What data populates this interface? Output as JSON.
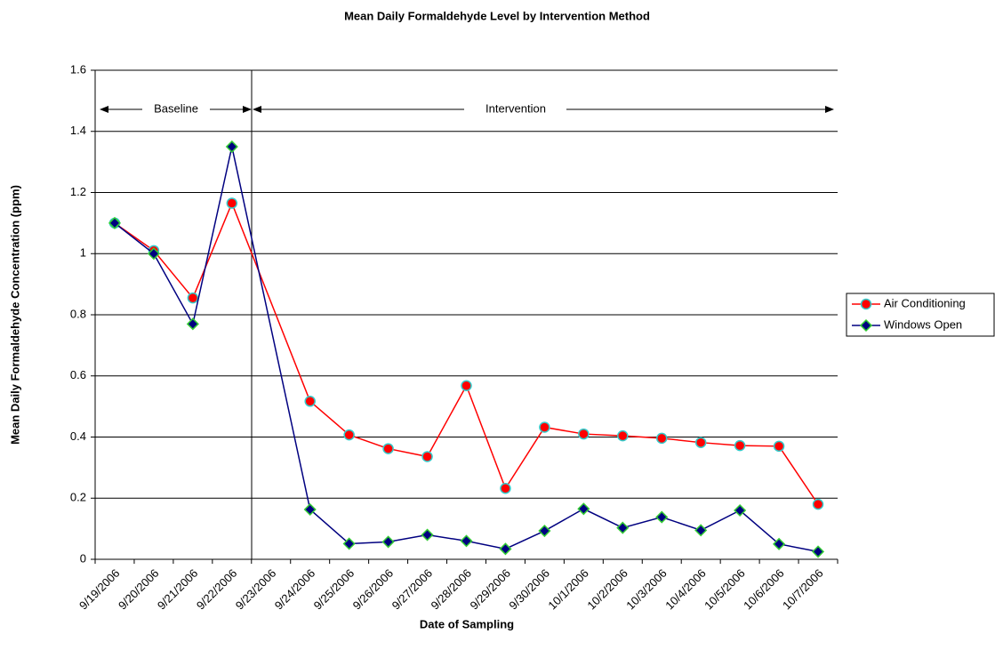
{
  "chart_data": {
    "type": "line",
    "title": "Mean Daily Formaldehyde Level by Intervention Method",
    "x_label": "Date of Sampling",
    "y_label": "Mean Daily Formaldehyde Concentration (ppm)",
    "annotations": [
      "Baseline",
      "Intervention"
    ],
    "categories": [
      "9/19/2006",
      "9/20/2006",
      "9/21/2006",
      "9/22/2006",
      "9/23/2006",
      "9/24/2006",
      "9/25/2006",
      "9/26/2006",
      "9/27/2006",
      "9/28/2006",
      "9/29/2006",
      "9/30/2006",
      "10/1/2006",
      "10/2/2006",
      "10/3/2006",
      "10/4/2006",
      "10/5/2006",
      "10/6/2006",
      "10/7/2006"
    ],
    "series": [
      {
        "name": "Air Conditioning",
        "color": "#ff0000",
        "marker": "circle",
        "marker_edge": "#33cccc",
        "values": [
          1.1,
          1.01,
          0.855,
          1.165,
          null,
          0.517,
          0.407,
          0.362,
          0.336,
          0.568,
          0.232,
          0.432,
          0.41,
          0.404,
          0.396,
          0.382,
          0.372,
          0.37,
          0.18
        ]
      },
      {
        "name": "Windows Open",
        "color": "#000080",
        "marker": "diamond",
        "marker_edge": "#33cc33",
        "values": [
          1.1,
          1.0,
          0.77,
          1.35,
          null,
          0.163,
          0.051,
          0.057,
          0.08,
          0.06,
          0.034,
          0.093,
          0.165,
          0.103,
          0.138,
          0.095,
          0.16,
          0.05,
          0.025
        ]
      }
    ],
    "connect_gaps": true,
    "ylim": [
      0,
      1.6
    ],
    "yticks": [
      0,
      0.2,
      0.4,
      0.6,
      0.8,
      1,
      1.2,
      1.4,
      1.6
    ],
    "grid": true,
    "legend": "right"
  }
}
